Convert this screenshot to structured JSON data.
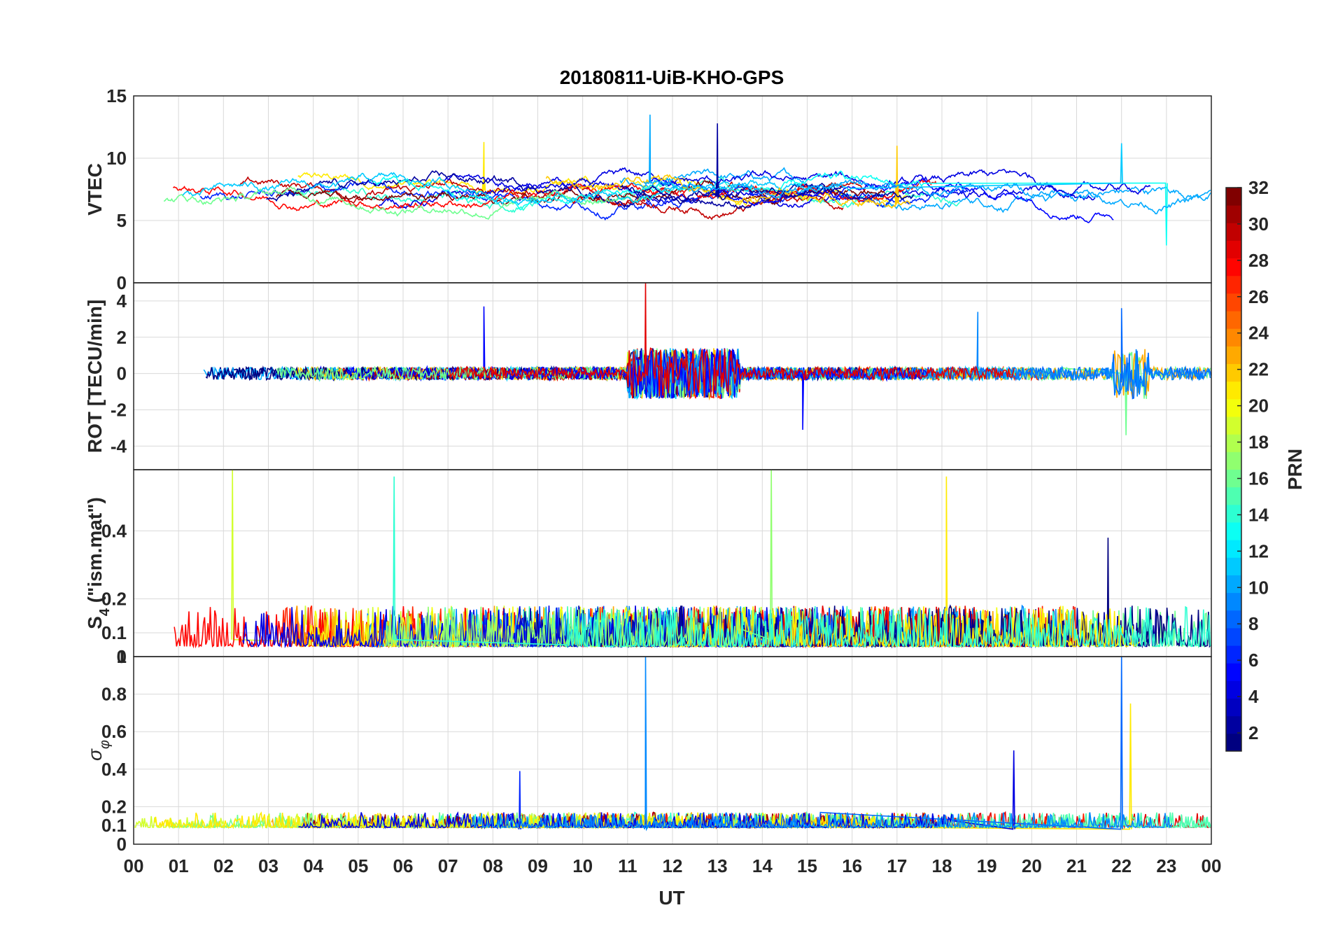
{
  "chart_data": {
    "type": "line",
    "title": "20180811-UiB-KHO-GPS",
    "xlabel": "UT",
    "x_ticks": [
      "00",
      "01",
      "02",
      "03",
      "04",
      "05",
      "06",
      "07",
      "08",
      "09",
      "10",
      "11",
      "12",
      "13",
      "14",
      "15",
      "16",
      "17",
      "18",
      "19",
      "20",
      "21",
      "22",
      "23",
      "00"
    ],
    "xlim": [
      0,
      24
    ],
    "grid": true,
    "colorbar": {
      "label": "PRN",
      "range": [
        1,
        32
      ],
      "ticks": [
        "2",
        "4",
        "6",
        "8",
        "10",
        "12",
        "14",
        "16",
        "18",
        "20",
        "22",
        "24",
        "26",
        "28",
        "30",
        "32"
      ],
      "colormap": "jet",
      "placement": "right"
    },
    "panels": [
      {
        "ylabel": "VTEC",
        "ylim": [
          0,
          15
        ],
        "yticks": [
          "0",
          "5",
          "10",
          "15"
        ],
        "series_note_values": {
          "baseline_range": [
            5,
            9
          ],
          "features": [
            {
              "x": 7.8,
              "y": 11.3
            },
            {
              "x": 11.5,
              "y": 13.5
            },
            {
              "x": 13.0,
              "y": 12.8
            },
            {
              "x": 17.0,
              "y": 11.0
            },
            {
              "x": 22.0,
              "y": 11.2
            },
            {
              "x": 23.0,
              "y": 3.0
            }
          ]
        }
      },
      {
        "ylabel": "ROT [TECU/min]",
        "ylim": [
          -5.3,
          5
        ],
        "yticks": [
          "-4",
          "-2",
          "0",
          "2",
          "4"
        ],
        "series_note_values": {
          "features": [
            {
              "x": 7.8,
              "y": 3.7
            },
            {
              "x": 11.4,
              "y": 5.0
            },
            {
              "x": 14.9,
              "y": -3.1
            },
            {
              "x": 18.8,
              "y": 3.4
            },
            {
              "x": 22.0,
              "y": 3.6
            },
            {
              "x": 22.1,
              "y": -3.4
            }
          ]
        }
      },
      {
        "ylabel": "S4 (\"ism.mat\")",
        "ylabel_main": "S",
        "ylabel_sub": "4",
        "ylabel_rest": " (\"ism.mat\")",
        "ylim": [
          0.03,
          0.58
        ],
        "yticks": [
          "0.1",
          "0.2",
          "0.4"
        ],
        "series_note_values": {
          "features": [
            {
              "x": 2.2,
              "y": 0.58
            },
            {
              "x": 5.8,
              "y": 0.56
            },
            {
              "x": 14.2,
              "y": 0.58
            },
            {
              "x": 18.1,
              "y": 0.56
            },
            {
              "x": 21.7,
              "y": 0.38
            }
          ]
        }
      },
      {
        "ylabel": "σφ",
        "ylabel_main": "σ",
        "ylabel_sub": "φ",
        "ylim": [
          0,
          1
        ],
        "yticks": [
          "0",
          "0.1",
          "0.2",
          "0.4",
          "0.6",
          "0.8",
          "1"
        ],
        "top_label": "0",
        "series_note_values": {
          "features": [
            {
              "x": 8.6,
              "y": 0.39
            },
            {
              "x": 11.4,
              "y": 1.0
            },
            {
              "x": 19.6,
              "y": 0.5
            },
            {
              "x": 22.0,
              "y": 1.0
            },
            {
              "x": 22.2,
              "y": 0.75
            }
          ]
        }
      }
    ]
  }
}
